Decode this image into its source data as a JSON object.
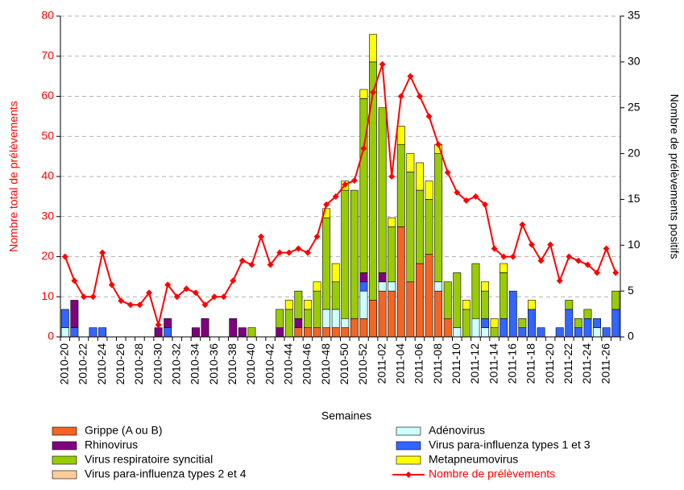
{
  "chart_data": {
    "type": "bar",
    "categories": [
      "2010-20",
      null,
      "2010-22",
      null,
      "2010-24",
      null,
      "2010-26",
      null,
      "2010-28",
      null,
      "2010-30",
      null,
      "2010-32",
      null,
      "2010-34",
      null,
      "2010-36",
      null,
      "2010-38",
      null,
      "2010-40",
      null,
      "2010-42",
      null,
      "2010-44",
      null,
      "2010-46",
      null,
      "2010-48",
      null,
      "2010-50",
      null,
      "2010-52",
      null,
      "2011-02",
      null,
      "2011-04",
      null,
      "2011-06",
      null,
      "2011-08",
      null,
      "2011-10",
      null,
      "2011-12",
      null,
      "2011-14",
      null,
      "2011-16",
      null,
      "2011-18",
      null,
      "2011-20",
      null,
      "2011-22",
      null,
      "2011-24",
      null,
      "2011-26",
      null
    ],
    "x_label": "Semaines",
    "y_label": "Nombre total de prélèvements",
    "y2_label": "Nombre de prélèvements positifs",
    "ylim": [
      0,
      80
    ],
    "yticks": [
      0,
      10,
      20,
      30,
      40,
      50,
      60,
      70,
      80
    ],
    "y2lim": [
      0,
      35
    ],
    "y2ticks": [
      0,
      5,
      10,
      15,
      20,
      25,
      30,
      35
    ],
    "grid": true,
    "stacked": true,
    "series": [
      {
        "name": "Grippe (A ou B)",
        "color": "#f26522",
        "axis": "y2",
        "values": [
          0,
          0,
          0,
          0,
          0,
          0,
          0,
          0,
          0,
          0,
          0,
          0,
          0,
          0,
          0,
          0,
          0,
          0,
          0,
          0,
          0,
          0,
          0,
          0,
          0,
          1,
          1,
          1,
          1,
          1,
          1,
          2,
          2,
          4,
          5,
          5,
          12,
          6,
          8,
          9,
          5,
          2,
          0,
          0,
          0,
          0,
          0,
          0,
          0,
          0,
          0,
          0,
          0,
          0,
          0,
          0,
          0,
          0,
          0,
          0
        ]
      },
      {
        "name": "Virus para-influenza types 2 et 4",
        "color": "#ffcc99",
        "axis": "y2",
        "values": [
          0,
          0,
          0,
          0,
          0,
          0,
          0,
          0,
          0,
          0,
          0,
          0,
          0,
          0,
          0,
          0,
          0,
          0,
          0,
          0,
          0,
          0,
          0,
          0,
          0,
          0,
          0,
          0,
          0,
          0,
          0,
          0,
          0,
          0,
          0,
          0,
          0,
          0,
          0,
          0,
          0,
          0,
          0,
          0,
          0,
          0,
          0,
          0,
          0,
          0,
          0,
          0,
          0,
          0,
          0,
          0,
          0,
          0,
          0,
          0
        ]
      },
      {
        "name": "Adénovirus",
        "color": "#ccffff",
        "axis": "y2",
        "values": [
          1,
          0,
          0,
          0,
          0,
          0,
          0,
          0,
          0,
          0,
          0,
          0,
          0,
          0,
          0,
          0,
          0,
          0,
          0,
          0,
          0,
          0,
          0,
          0,
          0,
          0,
          0,
          0,
          2,
          2,
          1,
          0,
          3,
          0,
          1,
          1,
          0,
          0,
          0,
          0,
          1,
          0,
          1,
          0,
          2,
          1,
          0,
          0,
          0,
          0,
          0,
          0,
          0,
          0,
          0,
          0,
          0,
          1,
          0,
          0
        ]
      },
      {
        "name": "Virus para-influenza types 1 et 3",
        "color": "#3366ff",
        "axis": "y2",
        "values": [
          2,
          1,
          0,
          1,
          1,
          0,
          0,
          0,
          0,
          0,
          0,
          1,
          0,
          0,
          0,
          0,
          0,
          0,
          0,
          0,
          0,
          0,
          0,
          0,
          0,
          0,
          0,
          0,
          0,
          0,
          0,
          0,
          1,
          0,
          0,
          0,
          0,
          0,
          0,
          0,
          0,
          0,
          0,
          0,
          0,
          1,
          0,
          2,
          5,
          1,
          3,
          1,
          0,
          1,
          3,
          1,
          2,
          1,
          1,
          3
        ]
      },
      {
        "name": "Rhinovirus",
        "color": "#800080",
        "axis": "y2",
        "values": [
          0,
          3,
          0,
          0,
          0,
          0,
          0,
          0,
          0,
          0,
          1,
          1,
          0,
          0,
          1,
          2,
          0,
          0,
          2,
          1,
          0,
          0,
          0,
          1,
          0,
          1,
          0,
          0,
          0,
          0,
          0,
          0,
          1,
          0,
          1,
          0,
          0,
          0,
          0,
          0,
          0,
          0,
          0,
          0,
          0,
          0,
          0,
          0,
          0,
          0,
          0,
          0,
          0,
          0,
          0,
          0,
          0,
          0,
          0,
          0
        ]
      },
      {
        "name": "Virus respiratoire syncitial",
        "color": "#99cc00",
        "axis": "y2",
        "values": [
          0,
          0,
          0,
          0,
          0,
          0,
          0,
          0,
          0,
          0,
          0,
          0,
          0,
          0,
          0,
          0,
          0,
          0,
          0,
          0,
          1,
          0,
          0,
          2,
          3,
          3,
          2,
          4,
          10,
          3,
          14,
          14,
          19,
          26,
          18,
          6,
          9,
          12,
          8,
          6,
          14,
          4,
          6,
          3,
          6,
          3,
          1,
          5,
          0,
          1,
          0,
          0,
          0,
          0,
          1,
          1,
          1,
          0,
          0,
          2
        ]
      },
      {
        "name": "Metapneumovirus",
        "color": "#ffff00",
        "axis": "y2",
        "values": [
          0,
          0,
          0,
          0,
          0,
          0,
          0,
          0,
          0,
          0,
          0,
          0,
          0,
          0,
          0,
          0,
          0,
          0,
          0,
          0,
          0,
          0,
          0,
          0,
          1,
          0,
          1,
          1,
          1,
          2,
          1,
          0,
          1,
          3,
          0,
          1,
          2,
          2,
          3,
          2,
          1,
          0,
          0,
          1,
          0,
          1,
          1,
          1,
          0,
          0,
          1,
          0,
          0,
          0,
          0,
          0,
          0,
          0,
          0,
          0
        ]
      },
      {
        "name": "Nombre de prélèvements",
        "color": "#ff0000",
        "type": "line",
        "axis": "y",
        "values": [
          20,
          14,
          10,
          10,
          21,
          13,
          9,
          8,
          8,
          11,
          3,
          13,
          10,
          12,
          11,
          8,
          10,
          10,
          14,
          19,
          18,
          25,
          18,
          21,
          21,
          22,
          21,
          25,
          33,
          35,
          38,
          39,
          47,
          61,
          68,
          40,
          60,
          65,
          60,
          55,
          48,
          41,
          36,
          34,
          35,
          33,
          22,
          20,
          20,
          28,
          23,
          19,
          23,
          14,
          20,
          19,
          18,
          16,
          22,
          16
        ]
      }
    ]
  }
}
